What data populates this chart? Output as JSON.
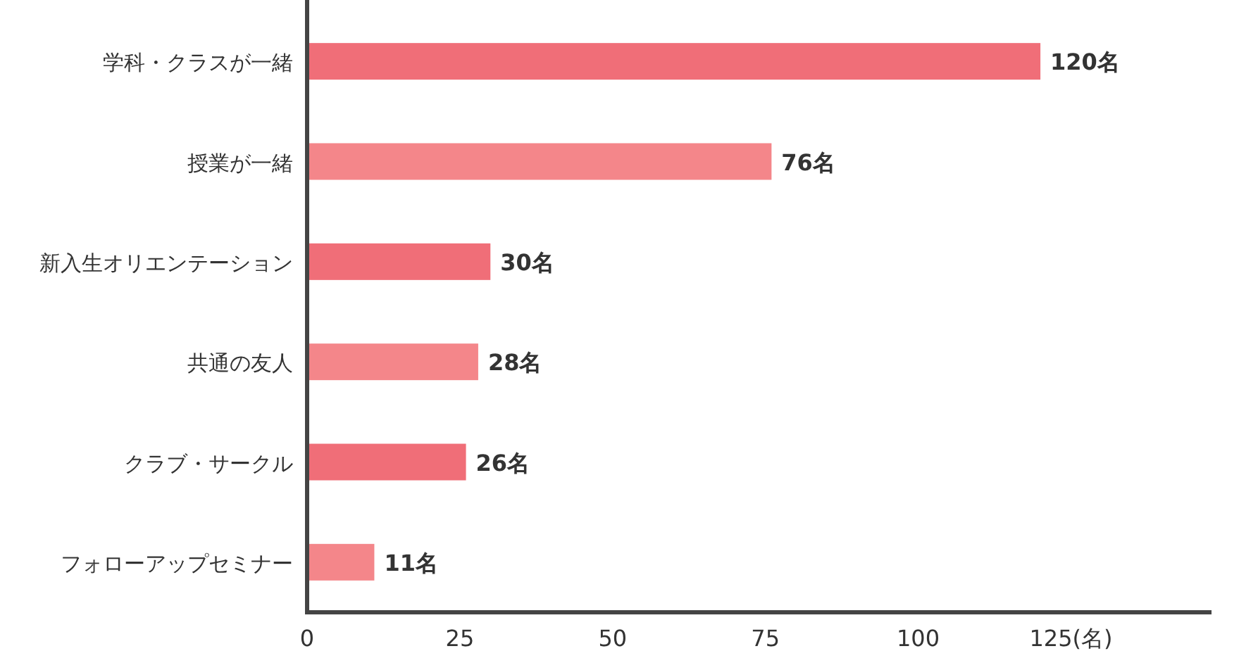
{
  "chart_data": {
    "type": "bar",
    "orientation": "horizontal",
    "categories": [
      "学科・クラスが一緒",
      "授業が一緒",
      "新入生オリエンテーション",
      "共通の友人",
      "クラブ・サークル",
      "フォローアップセミナー"
    ],
    "values": [
      120,
      76,
      30,
      28,
      26,
      11
    ],
    "colors": [
      "#f06e78",
      "#f4868a",
      "#f06e78",
      "#f4868a",
      "#f06e78",
      "#f4868a"
    ],
    "value_labels": [
      "120名",
      "76名",
      "30名",
      "28名",
      "26名",
      "11名"
    ],
    "xlim": [
      0,
      148
    ],
    "xticks": [
      0,
      25,
      50,
      75,
      100,
      {
        "value": 125,
        "label": "125(名)"
      }
    ],
    "grid": false
  }
}
